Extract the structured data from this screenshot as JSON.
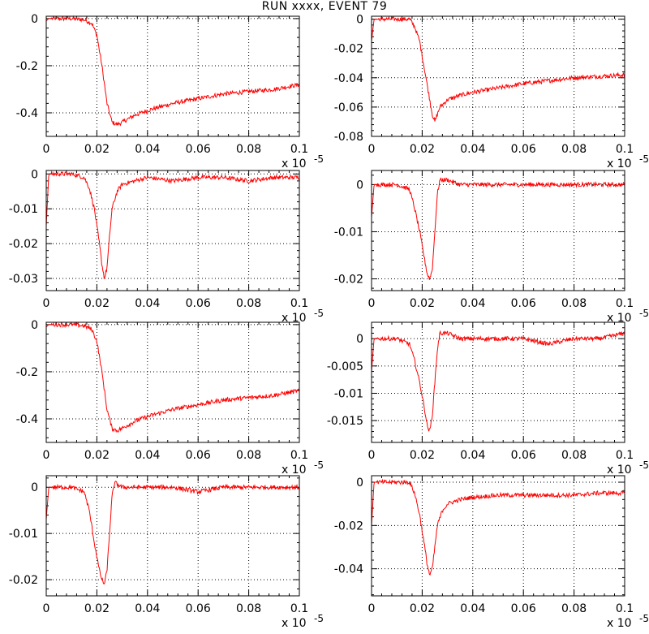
{
  "title": "RUN xxxx, EVENT    79",
  "colors": {
    "trace": "#ff0000",
    "axis": "#000000",
    "grid": "#000000",
    "background": "#ffffff"
  },
  "chart_data": [
    {
      "type": "line",
      "xlim": [
        0,
        0.1
      ],
      "ylim": [
        -0.5,
        0.01
      ],
      "x_ticks": [
        0,
        0.02,
        0.04,
        0.06,
        0.08,
        0.1
      ],
      "x_tick_labels": [
        "0",
        "0.02",
        "0.04",
        "0.06",
        "0.08",
        "0.1"
      ],
      "y_ticks": [
        0,
        -0.2,
        -0.4
      ],
      "y_tick_labels": [
        "0",
        "-0.2",
        "-0.4"
      ],
      "x_multiplier": "x 10",
      "x_multiplier_exp": "-5",
      "grid": true,
      "series": [
        {
          "x": [
            0,
            0.001,
            0.01,
            0.015,
            0.018,
            0.02,
            0.022,
            0.024,
            0.026,
            0.028,
            0.03,
            0.035,
            0.04,
            0.05,
            0.06,
            0.07,
            0.08,
            0.09,
            0.1
          ],
          "y": [
            -0.01,
            0.0,
            0.0,
            -0.005,
            -0.02,
            -0.07,
            -0.2,
            -0.36,
            -0.44,
            -0.45,
            -0.44,
            -0.41,
            -0.39,
            -0.36,
            -0.34,
            -0.32,
            -0.31,
            -0.3,
            -0.28
          ]
        }
      ]
    },
    {
      "type": "line",
      "xlim": [
        0,
        0.1
      ],
      "ylim": [
        -0.08,
        0.002
      ],
      "x_ticks": [
        0,
        0.02,
        0.04,
        0.06,
        0.08,
        0.1
      ],
      "x_tick_labels": [
        "0",
        "0.02",
        "0.04",
        "0.06",
        "0.08",
        "0.1"
      ],
      "y_ticks": [
        0,
        -0.02,
        -0.04,
        -0.06,
        -0.08
      ],
      "y_tick_labels": [
        "0",
        "-0.02",
        "-0.04",
        "-0.06",
        "-0.08"
      ],
      "x_multiplier": "x 10",
      "x_multiplier_exp": "-5",
      "grid": true,
      "series": [
        {
          "x": [
            0,
            0.001,
            0.01,
            0.015,
            0.017,
            0.019,
            0.021,
            0.023,
            0.024,
            0.025,
            0.027,
            0.03,
            0.035,
            0.04,
            0.05,
            0.06,
            0.07,
            0.08,
            0.09,
            0.1
          ],
          "y": [
            -0.015,
            0.0,
            0.0,
            0.0,
            -0.005,
            -0.015,
            -0.035,
            -0.055,
            -0.065,
            -0.07,
            -0.06,
            -0.055,
            -0.052,
            -0.05,
            -0.047,
            -0.044,
            -0.042,
            -0.04,
            -0.039,
            -0.038
          ]
        }
      ]
    },
    {
      "type": "line",
      "xlim": [
        0,
        0.1
      ],
      "ylim": [
        -0.0335,
        0.001
      ],
      "x_ticks": [
        0,
        0.02,
        0.04,
        0.06,
        0.08,
        0.1
      ],
      "x_tick_labels": [
        "0",
        "0.02",
        "0.04",
        "0.06",
        "0.08",
        "0.1"
      ],
      "y_ticks": [
        0,
        -0.01,
        -0.02,
        -0.03
      ],
      "y_tick_labels": [
        "0",
        "-0.01",
        "-0.02",
        "-0.03"
      ],
      "x_multiplier": "x 10",
      "x_multiplier_exp": "-5",
      "grid": true,
      "series": [
        {
          "x": [
            0,
            0.001,
            0.01,
            0.015,
            0.017,
            0.019,
            0.021,
            0.022,
            0.023,
            0.024,
            0.025,
            0.026,
            0.028,
            0.03,
            0.035,
            0.04,
            0.05,
            0.06,
            0.07,
            0.08,
            0.09,
            0.1
          ],
          "y": [
            -0.015,
            0.0,
            0.0,
            -0.001,
            -0.004,
            -0.01,
            -0.02,
            -0.026,
            -0.03,
            -0.027,
            -0.018,
            -0.01,
            -0.005,
            -0.003,
            -0.002,
            -0.001,
            -0.002,
            -0.001,
            -0.001,
            -0.002,
            -0.001,
            -0.001
          ]
        }
      ]
    },
    {
      "type": "line",
      "xlim": [
        0,
        0.1
      ],
      "ylim": [
        -0.0225,
        0.003
      ],
      "x_ticks": [
        0,
        0.02,
        0.04,
        0.06,
        0.08,
        0.1
      ],
      "x_tick_labels": [
        "0",
        "0.02",
        "0.04",
        "0.06",
        "0.08",
        "0.1"
      ],
      "y_ticks": [
        0,
        -0.01,
        -0.02
      ],
      "y_tick_labels": [
        "0",
        "-0.01",
        "-0.02"
      ],
      "x_multiplier": "x 10",
      "x_multiplier_exp": "-5",
      "grid": true,
      "series": [
        {
          "x": [
            0,
            0.001,
            0.01,
            0.015,
            0.017,
            0.019,
            0.021,
            0.022,
            0.023,
            0.024,
            0.025,
            0.026,
            0.027,
            0.03,
            0.035,
            0.04,
            0.05,
            0.06,
            0.07,
            0.08,
            0.09,
            0.1
          ],
          "y": [
            -0.007,
            0.0,
            0.0,
            -0.001,
            -0.005,
            -0.01,
            -0.016,
            -0.019,
            -0.02,
            -0.018,
            -0.01,
            -0.002,
            0.001,
            0.001,
            0.0,
            0.0,
            0.0,
            0.0,
            0.0,
            0.0,
            0.0,
            0.0
          ]
        }
      ]
    },
    {
      "type": "line",
      "xlim": [
        0,
        0.1
      ],
      "ylim": [
        -0.5,
        0.01
      ],
      "x_ticks": [
        0,
        0.02,
        0.04,
        0.06,
        0.08,
        0.1
      ],
      "x_tick_labels": [
        "0",
        "0.02",
        "0.04",
        "0.06",
        "0.08",
        "0.1"
      ],
      "y_ticks": [
        0,
        -0.2,
        -0.4
      ],
      "y_tick_labels": [
        "0",
        "-0.2",
        "-0.4"
      ],
      "x_multiplier": "x 10",
      "x_multiplier_exp": "-5",
      "grid": true,
      "series": [
        {
          "x": [
            0,
            0.001,
            0.01,
            0.015,
            0.018,
            0.02,
            0.022,
            0.024,
            0.026,
            0.028,
            0.03,
            0.035,
            0.04,
            0.05,
            0.06,
            0.07,
            0.08,
            0.09,
            0.1
          ],
          "y": [
            -0.01,
            0.0,
            0.0,
            -0.005,
            -0.02,
            -0.07,
            -0.2,
            -0.36,
            -0.44,
            -0.45,
            -0.44,
            -0.41,
            -0.39,
            -0.36,
            -0.34,
            -0.32,
            -0.31,
            -0.3,
            -0.28
          ]
        }
      ]
    },
    {
      "type": "line",
      "xlim": [
        0,
        0.1
      ],
      "ylim": [
        -0.019,
        0.003
      ],
      "x_ticks": [
        0,
        0.02,
        0.04,
        0.06,
        0.08,
        0.1
      ],
      "x_tick_labels": [
        "0",
        "0.02",
        "0.04",
        "0.06",
        "0.08",
        "0.1"
      ],
      "y_ticks": [
        0,
        -0.005,
        -0.01,
        -0.015
      ],
      "y_tick_labels": [
        "0",
        "-0.005",
        "-0.01",
        "-0.015"
      ],
      "x_multiplier": "x 10",
      "x_multiplier_exp": "-5",
      "grid": true,
      "series": [
        {
          "x": [
            0,
            0.001,
            0.01,
            0.015,
            0.017,
            0.019,
            0.021,
            0.022,
            0.023,
            0.024,
            0.025,
            0.026,
            0.027,
            0.03,
            0.035,
            0.04,
            0.05,
            0.06,
            0.07,
            0.08,
            0.09,
            0.1
          ],
          "y": [
            -0.006,
            0.0,
            0.0,
            -0.001,
            -0.004,
            -0.008,
            -0.013,
            -0.016,
            -0.017,
            -0.014,
            -0.008,
            -0.002,
            0.001,
            0.001,
            0.0,
            0.0,
            0.0,
            0.0,
            -0.001,
            0.0,
            0.0,
            0.001
          ]
        }
      ]
    },
    {
      "type": "line",
      "xlim": [
        0,
        0.1
      ],
      "ylim": [
        -0.0235,
        0.0025
      ],
      "x_ticks": [
        0,
        0.02,
        0.04,
        0.06,
        0.08,
        0.1
      ],
      "x_tick_labels": [
        "0",
        "0.02",
        "0.04",
        "0.06",
        "0.08",
        "0.1"
      ],
      "y_ticks": [
        0,
        -0.01,
        -0.02
      ],
      "y_tick_labels": [
        "0",
        "-0.01",
        "-0.02"
      ],
      "x_multiplier": "x 10",
      "x_multiplier_exp": "-5",
      "grid": true,
      "series": [
        {
          "x": [
            0,
            0.001,
            0.01,
            0.015,
            0.017,
            0.019,
            0.021,
            0.022,
            0.023,
            0.024,
            0.025,
            0.026,
            0.027,
            0.03,
            0.035,
            0.04,
            0.05,
            0.06,
            0.07,
            0.08,
            0.09,
            0.1
          ],
          "y": [
            -0.007,
            0.0,
            0.0,
            -0.001,
            -0.005,
            -0.012,
            -0.018,
            -0.02,
            -0.021,
            -0.018,
            -0.01,
            -0.002,
            0.001,
            0.0,
            0.0,
            0.0,
            0.0,
            -0.001,
            0.0,
            0.0,
            0.0,
            0.0
          ]
        }
      ]
    },
    {
      "type": "line",
      "xlim": [
        0,
        0.1
      ],
      "ylim": [
        -0.0525,
        0.003
      ],
      "x_ticks": [
        0,
        0.02,
        0.04,
        0.06,
        0.08,
        0.1
      ],
      "x_tick_labels": [
        "0",
        "0.02",
        "0.04",
        "0.06",
        "0.08",
        "0.1"
      ],
      "y_ticks": [
        0,
        -0.02,
        -0.04
      ],
      "y_tick_labels": [
        "0",
        "-0.02",
        "-0.04"
      ],
      "x_multiplier": "x 10",
      "x_multiplier_exp": "-5",
      "grid": true,
      "series": [
        {
          "x": [
            0,
            0.001,
            0.01,
            0.015,
            0.017,
            0.019,
            0.021,
            0.022,
            0.023,
            0.024,
            0.025,
            0.026,
            0.028,
            0.03,
            0.035,
            0.04,
            0.05,
            0.06,
            0.07,
            0.08,
            0.09,
            0.1
          ],
          "y": [
            -0.02,
            0.0,
            0.0,
            0.0,
            -0.005,
            -0.015,
            -0.03,
            -0.038,
            -0.043,
            -0.04,
            -0.03,
            -0.02,
            -0.013,
            -0.01,
            -0.008,
            -0.007,
            -0.006,
            -0.006,
            -0.006,
            -0.006,
            -0.005,
            -0.005
          ]
        }
      ]
    }
  ]
}
